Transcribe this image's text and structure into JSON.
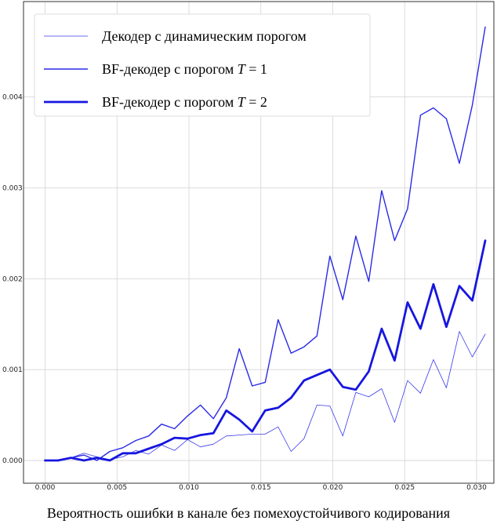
{
  "chart_data": {
    "type": "line",
    "title": "",
    "xlabel": "Вероятность ошибки в канале без помехоустойчивого кодирования",
    "ylabel": "",
    "xlim": [
      -0.0015,
      0.0312
    ],
    "ylim": [
      -0.00025,
      0.00505
    ],
    "grid": true,
    "legend_position": "top-left",
    "x_ticks": [
      "0.000",
      "0.005",
      "0.010",
      "0.015",
      "0.020",
      "0.025",
      "0.030"
    ],
    "y_ticks": [
      "0.000",
      "0.001",
      "0.002",
      "0.003",
      "0.004"
    ],
    "x": [
      0.0,
      0.0009,
      0.0018,
      0.0027,
      0.0036,
      0.0045,
      0.0054,
      0.0063,
      0.0072,
      0.0081,
      0.009,
      0.0099,
      0.0108,
      0.0117,
      0.0126,
      0.0135,
      0.0144,
      0.0153,
      0.0162,
      0.0171,
      0.018,
      0.0189,
      0.0198,
      0.0207,
      0.0216,
      0.0225,
      0.0234,
      0.0243,
      0.0252,
      0.0261,
      0.027,
      0.0279,
      0.0288,
      0.0297,
      0.0306
    ],
    "series": [
      {
        "name": "Декодер с динамическим порогом",
        "color": "#3a3aee",
        "width": 0.8,
        "values": [
          0.0,
          0.0,
          3e-05,
          8e-05,
          4e-05,
          1e-05,
          4e-05,
          0.00011,
          7e-05,
          0.00017,
          0.00011,
          0.00023,
          0.00015,
          0.00018,
          0.00027,
          0.00028,
          0.00029,
          0.00029,
          0.00037,
          0.0001,
          0.00024,
          0.00061,
          0.0006,
          0.00027,
          0.00075,
          0.0007,
          0.00079,
          0.00042,
          0.00088,
          0.00074,
          0.00111,
          0.0008,
          0.00142,
          0.00114,
          0.00139
        ]
      },
      {
        "name": "BF-декодер с порогом T = 1",
        "color": "#2a2ae6",
        "width": 1.4,
        "values": [
          0.0,
          0.0,
          3e-05,
          6e-05,
          0.0,
          0.0001,
          0.00014,
          0.00022,
          0.00027,
          0.0004,
          0.00035,
          0.00049,
          0.00061,
          0.00046,
          0.00069,
          0.00123,
          0.00082,
          0.00086,
          0.00155,
          0.00118,
          0.00125,
          0.00137,
          0.00225,
          0.00177,
          0.00247,
          0.00197,
          0.00297,
          0.00242,
          0.00277,
          0.0038,
          0.00388,
          0.00376,
          0.00327,
          0.00391,
          0.00477
        ]
      },
      {
        "name": "BF-декодер с порогом T = 2",
        "color": "#1616e0",
        "width": 2.8,
        "values": [
          0.0,
          0.0,
          3e-05,
          0.0,
          3e-05,
          0.0,
          8e-05,
          8e-05,
          0.00013,
          0.00018,
          0.00025,
          0.00024,
          0.00028,
          0.0003,
          0.00055,
          0.00045,
          0.00032,
          0.00055,
          0.00058,
          0.00069,
          0.00088,
          0.00094,
          0.001,
          0.00081,
          0.00078,
          0.00098,
          0.00145,
          0.0011,
          0.00174,
          0.00145,
          0.00194,
          0.00147,
          0.00192,
          0.00176,
          0.00242
        ]
      }
    ],
    "legend": {
      "entries": [
        {
          "prefix": "Декодер с динамическим порогом",
          "var": "",
          "suffix": ""
        },
        {
          "prefix": "BF-декодер с порогом ",
          "var": "T",
          "suffix": " = 1"
        },
        {
          "prefix": "BF-декодер с порогом ",
          "var": "T",
          "suffix": " = 2"
        }
      ]
    }
  }
}
